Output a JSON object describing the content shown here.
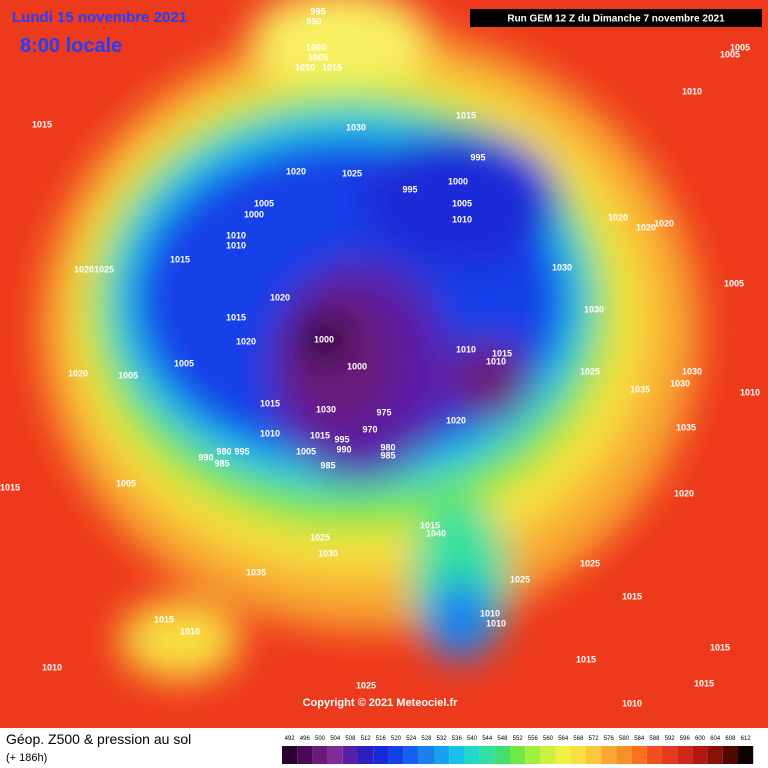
{
  "header": {
    "date": "Lundi 15 novembre 2021",
    "time": "8:00 locale",
    "run": "Run GEM 12 Z du Dimanche 7 novembre 2021"
  },
  "copyright": "Copyright © 2021 Meteociel.fr",
  "footer": {
    "title": "Géop. Z500 & pression au sol",
    "lead": "(+ 186h)"
  },
  "scale": {
    "ticks": [
      492,
      496,
      500,
      504,
      508,
      512,
      516,
      520,
      524,
      528,
      532,
      536,
      540,
      544,
      548,
      552,
      556,
      560,
      564,
      568,
      572,
      576,
      580,
      584,
      588,
      592,
      596,
      600,
      604,
      608,
      612
    ],
    "colors": [
      "#2a0033",
      "#4a0a55",
      "#6a1b7a",
      "#7f2d96",
      "#5a1fa8",
      "#2d1ec0",
      "#1a2ad8",
      "#1440e8",
      "#1660f0",
      "#1a80f0",
      "#1aa0f0",
      "#18c0e8",
      "#20d8c8",
      "#30e0a0",
      "#40e070",
      "#70e848",
      "#a0f040",
      "#d0f040",
      "#f0f040",
      "#f8e040",
      "#f8c838",
      "#f8a830",
      "#f89028",
      "#f87020",
      "#f05020",
      "#e83820",
      "#d02818",
      "#b01810",
      "#881008",
      "#500800",
      "#100000"
    ]
  },
  "pressure_labels": [
    995,
    990,
    1000,
    1005,
    1010,
    1015,
    1005,
    1005,
    1010,
    1015,
    1015,
    1030,
    995,
    1000,
    995,
    1005,
    1010,
    1020,
    1025,
    1005,
    1000,
    1010,
    1010,
    1015,
    1020,
    1020,
    1020,
    1025,
    1020,
    1030,
    1005,
    1020,
    1015,
    1030,
    1000,
    1020,
    1010,
    1015,
    1010,
    1000,
    1005,
    1020,
    1005,
    1025,
    1030,
    1035,
    1030,
    1010,
    1015,
    1030,
    975,
    970,
    1010,
    1015,
    995,
    1020,
    990,
    980,
    985,
    980,
    990,
    995,
    985,
    1005,
    985,
    1035,
    1005,
    1015,
    1020,
    1015,
    1040,
    1025,
    1030,
    1025,
    1035,
    1025,
    1015,
    1010,
    1015,
    1010,
    1010,
    1015,
    1015,
    1010,
    1025,
    1015,
    1010
  ]
}
